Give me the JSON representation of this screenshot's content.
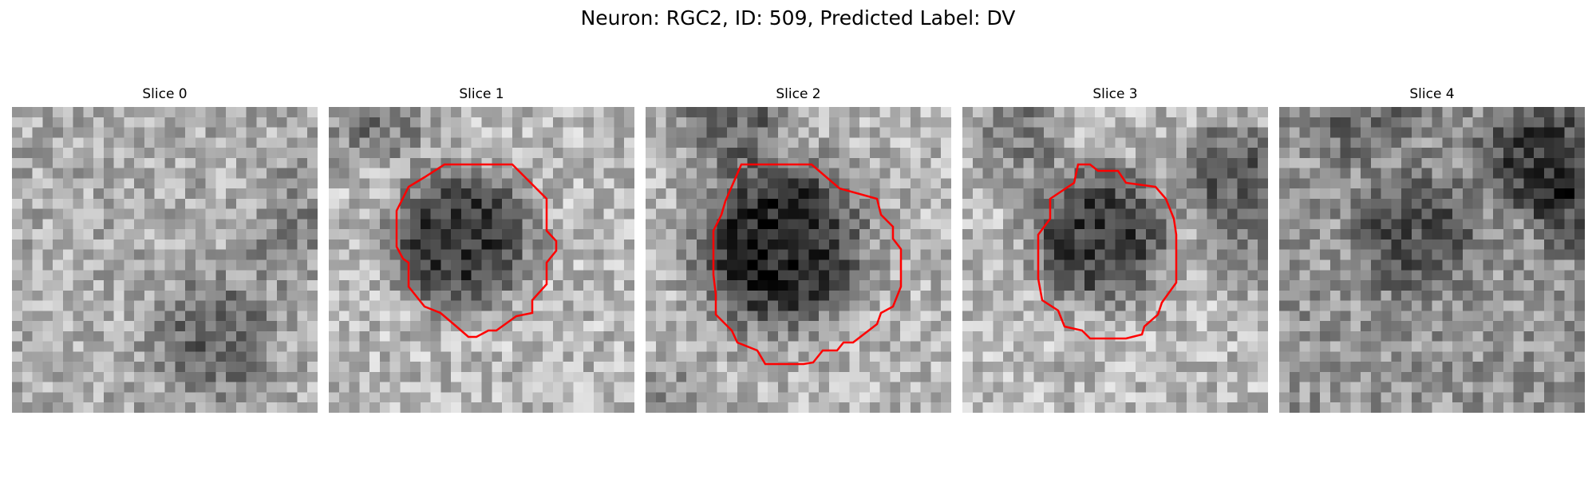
{
  "figure": {
    "title": "Neuron: RGC2, ID: 509, Predicted Label: DV",
    "colormap": "gray",
    "contour_color": "#ff0000"
  },
  "slices": [
    {
      "title": "Slice 0",
      "has_contour": false
    },
    {
      "title": "Slice 1",
      "has_contour": true
    },
    {
      "title": "Slice 2",
      "has_contour": true
    },
    {
      "title": "Slice 3",
      "has_contour": true
    },
    {
      "title": "Slice 4",
      "has_contour": false
    }
  ]
}
